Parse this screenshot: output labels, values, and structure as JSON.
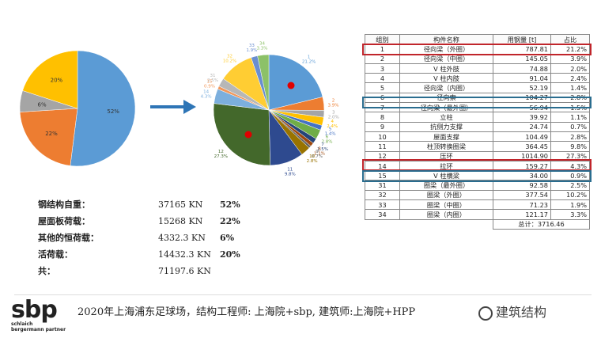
{
  "chart_data": [
    {
      "type": "pie",
      "labels": [
        "52%",
        "22%",
        "6%",
        "20%"
      ],
      "values": [
        52,
        22,
        6,
        20
      ],
      "colors": [
        "#5b9bd5",
        "#ed7d31",
        "#a5a5a5",
        "#ffc000"
      ]
    },
    {
      "type": "pie",
      "slices": [
        {
          "id": "1",
          "pct": 21.2,
          "label": "21.2%",
          "color": "#5b9bd5"
        },
        {
          "id": "2",
          "pct": 3.9,
          "label": "3.9%",
          "color": "#ed7d31"
        },
        {
          "id": "3",
          "pct": 2.0,
          "label": "2.0%",
          "color": "#a5a5a5"
        },
        {
          "id": "4",
          "pct": 2.4,
          "label": "2.4%",
          "color": "#ffc000"
        },
        {
          "id": "5",
          "pct": 1.4,
          "label": "1.4%",
          "color": "#4472c4"
        },
        {
          "id": "6",
          "pct": 2.8,
          "label": "2.8%",
          "color": "#70ad47"
        },
        {
          "id": "7",
          "pct": 1.5,
          "label": "1.5%",
          "color": "#264478"
        },
        {
          "id": "8",
          "pct": 1.1,
          "label": "1.1%",
          "color": "#9e480e"
        },
        {
          "id": "9",
          "pct": 0.7,
          "label": "0.7%",
          "color": "#636363"
        },
        {
          "id": "10",
          "pct": 2.8,
          "label": "2.8%",
          "color": "#997300"
        },
        {
          "id": "11",
          "pct": 9.8,
          "label": "9.8%",
          "color": "#2e4a8f"
        },
        {
          "id": "12",
          "pct": 27.3,
          "label": "27.3%",
          "color": "#43682b"
        },
        {
          "id": "14",
          "pct": 4.3,
          "label": "4.3%",
          "color": "#7cafdd"
        },
        {
          "id": "15",
          "pct": 0.9,
          "label": "0.9%",
          "color": "#f1975a"
        },
        {
          "id": "31",
          "pct": 2.5,
          "label": "2.5%",
          "color": "#b7b7b7"
        },
        {
          "id": "32",
          "pct": 10.2,
          "label": "10.2%",
          "color": "#ffcd33"
        },
        {
          "id": "33",
          "pct": 1.9,
          "label": "1.9%",
          "color": "#698ed0"
        },
        {
          "id": "34",
          "pct": 3.3,
          "label": "3.3%",
          "color": "#8cc168"
        }
      ]
    }
  ],
  "loads": [
    {
      "label": "钢结构自重：",
      "value": "37165  KN",
      "pct": "52%"
    },
    {
      "label": "屋面板荷载：",
      "value": "15268  KN",
      "pct": "22%"
    },
    {
      "label": "其他的恒荷载：",
      "value": "4332.3  KN",
      "pct": "6%"
    },
    {
      "label": "活荷载：",
      "value": "14432.3  KN",
      "pct": "20%"
    },
    {
      "label": "共：",
      "value": "71197.6  KN",
      "pct": ""
    }
  ],
  "table": {
    "headers": [
      "组别",
      "构件名称",
      "用钢量 [t]",
      "占比"
    ],
    "rows": [
      [
        "1",
        "径向梁（外圈）",
        "787.81",
        "21.2%"
      ],
      [
        "2",
        "径向梁（中圈）",
        "145.05",
        "3.9%"
      ],
      [
        "3",
        "V 柱外肢",
        "74.88",
        "2.0%"
      ],
      [
        "4",
        "V 柱内肢",
        "91.04",
        "2.4%"
      ],
      [
        "5",
        "径向梁（内圈）",
        "52.19",
        "1.4%"
      ],
      [
        "6",
        "径向索",
        "104.27",
        "2.8%"
      ],
      [
        "7",
        "径向梁（最外圈）",
        "56.94",
        "1.5%"
      ],
      [
        "8",
        "立柱",
        "39.92",
        "1.1%"
      ],
      [
        "9",
        "抗侧力支撑",
        "24.74",
        "0.7%"
      ],
      [
        "10",
        "屋面支撑",
        "104.49",
        "2.8%"
      ],
      [
        "11",
        "柱顶转换圈梁",
        "364.45",
        "9.8%"
      ],
      [
        "12",
        "压环",
        "1014.90",
        "27.3%"
      ],
      [
        "14",
        "拉环",
        "159.27",
        "4.3%"
      ],
      [
        "15",
        "V 柱横梁",
        "34.00",
        "0.9%"
      ],
      [
        "31",
        "圈梁（最外圈）",
        "92.58",
        "2.5%"
      ],
      [
        "32",
        "圈梁（外圈）",
        "377.54",
        "10.2%"
      ],
      [
        "33",
        "圈梁（中圈）",
        "71.23",
        "1.9%"
      ],
      [
        "34",
        "圈梁（内圈）",
        "121.17",
        "3.3%"
      ]
    ],
    "total": "总计：3716.46"
  },
  "caption": "2020年上海浦东足球场，结构工程师: 上海院+sbp, 建筑师:上海院+HPP",
  "logo": {
    "mark": "sbp",
    "line1": "schlaich",
    "line2": "bergermann partner"
  },
  "watermark": "建筑结构",
  "accent_colors": {
    "red_box": "#c0252b",
    "blue_box": "#2a6d8f",
    "arrow": "#2e75b6"
  }
}
